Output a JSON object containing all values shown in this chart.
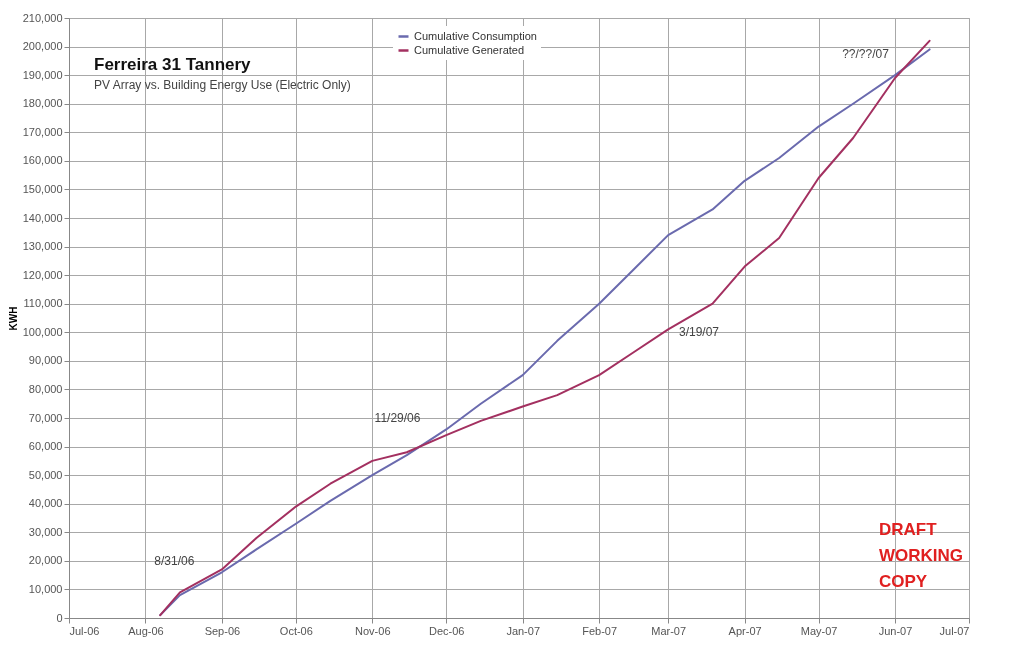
{
  "chart_data": {
    "type": "line",
    "title": "Ferreira 31 Tannery",
    "subtitle": "PV Array vs. Building Energy Use (Electric Only)",
    "ylabel": "KWH",
    "x": [
      "2006-08-07",
      "2006-08-15",
      "2006-09-01",
      "2006-09-15",
      "2006-10-01",
      "2006-10-15",
      "2006-11-01",
      "2006-11-15",
      "2006-12-01",
      "2006-12-15",
      "2007-01-01",
      "2007-01-15",
      "2007-02-01",
      "2007-02-15",
      "2007-03-01",
      "2007-03-19",
      "2007-04-01",
      "2007-04-15",
      "2007-05-01",
      "2007-05-15",
      "2007-06-01",
      "2007-06-15"
    ],
    "series": [
      {
        "name": "Cumulative Consumption",
        "color": "#6a6aae",
        "values": [
          1000,
          8000,
          16000,
          24000,
          33000,
          41000,
          50000,
          57000,
          66000,
          75000,
          85000,
          97000,
          110000,
          122000,
          134000,
          143000,
          153000,
          161000,
          172000,
          180000,
          190000,
          199000
        ]
      },
      {
        "name": "Cumulative Generated",
        "color": "#a33060",
        "values": [
          1000,
          9000,
          17000,
          28000,
          39000,
          47000,
          55000,
          58000,
          64000,
          69000,
          74000,
          78000,
          85000,
          93000,
          101000,
          110000,
          123000,
          133000,
          154000,
          168000,
          189000,
          202000
        ]
      }
    ],
    "xlim": [
      "2006-07-01",
      "2007-07-01"
    ],
    "xticks": [
      {
        "value": "2006-07-01",
        "label": "Jul-06"
      },
      {
        "value": "2006-08-01",
        "label": "Aug-06"
      },
      {
        "value": "2006-09-01",
        "label": "Sep-06"
      },
      {
        "value": "2006-10-01",
        "label": "Oct-06"
      },
      {
        "value": "2006-11-01",
        "label": "Nov-06"
      },
      {
        "value": "2006-12-01",
        "label": "Dec-06"
      },
      {
        "value": "2007-01-01",
        "label": "Jan-07"
      },
      {
        "value": "2007-02-01",
        "label": "Feb-07"
      },
      {
        "value": "2007-03-01",
        "label": "Mar-07"
      },
      {
        "value": "2007-04-01",
        "label": "Apr-07"
      },
      {
        "value": "2007-05-01",
        "label": "May-07"
      },
      {
        "value": "2007-06-01",
        "label": "Jun-07"
      },
      {
        "value": "2007-07-01",
        "label": "Jul-07"
      }
    ],
    "ylim": [
      0,
      210000
    ],
    "yticks": [
      0,
      {
        "value": 10000,
        "label": "10,000"
      },
      {
        "value": 20000,
        "label": "20,000"
      },
      {
        "value": 30000,
        "label": "30,000"
      },
      {
        "value": 40000,
        "label": "40,000"
      },
      {
        "value": 50000,
        "label": "50,000"
      },
      {
        "value": 60000,
        "label": "60,000"
      },
      {
        "value": 70000,
        "label": "70,000"
      },
      {
        "value": 80000,
        "label": "80,000"
      },
      {
        "value": 90000,
        "label": "90,000"
      },
      {
        "value": 100000,
        "label": "100,000"
      },
      {
        "value": 110000,
        "label": "110,000"
      },
      {
        "value": 120000,
        "label": "120,000"
      },
      {
        "value": 130000,
        "label": "130,000"
      },
      {
        "value": 140000,
        "label": "140,000"
      },
      {
        "value": 150000,
        "label": "150,000"
      },
      {
        "value": 160000,
        "label": "160,000"
      },
      {
        "value": 170000,
        "label": "170,000"
      },
      {
        "value": 180000,
        "label": "180,000"
      },
      {
        "value": 190000,
        "label": "190,000"
      },
      {
        "value": 200000,
        "label": "200,000"
      },
      {
        "value": 210000,
        "label": "210,000"
      }
    ],
    "annotations": [
      "8/31/06",
      "11/29/06",
      "3/19/07",
      "??/??/07",
      "DRAFT WORKING COPY"
    ],
    "grid": true,
    "legend": "top",
    "marker": "none",
    "line_style": "solid"
  }
}
